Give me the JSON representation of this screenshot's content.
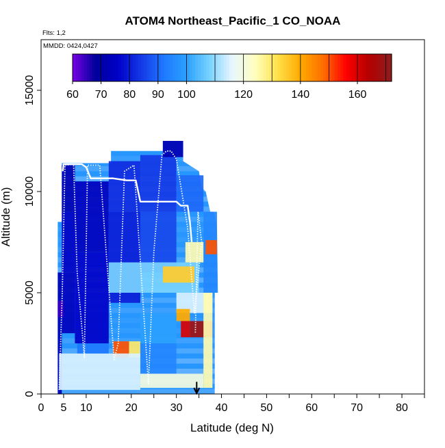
{
  "chart_data": {
    "type": "heatmap",
    "title": "ATOM4 Northeast_Pacific_1 CO_NOAA",
    "annotations": [
      "Flts: 1,2",
      "MMDD: 0424,0427"
    ],
    "xlabel": "Latitude (deg N)",
    "ylabel": "Altitude (m)",
    "xlim": [
      0,
      85
    ],
    "ylim": [
      0,
      17500
    ],
    "x_ticks": [
      "0",
      "5",
      "10",
      "20",
      "30",
      "40",
      "50",
      "60",
      "70",
      "80"
    ],
    "y_ticks": [
      "0",
      "5000",
      "10000",
      "15000"
    ],
    "colorbar": {
      "range": [
        60,
        172
      ],
      "ticks": [
        "60",
        "70",
        "80",
        "90",
        "100",
        "120",
        "140",
        "160"
      ],
      "colors": [
        "#7a00e6",
        "#00009a",
        "#0000c8",
        "#1438e6",
        "#1e78ff",
        "#2aa0ff",
        "#78d2ff",
        "#e8f6ff",
        "#ffffc0",
        "#ffe14a",
        "#ffaa00",
        "#ff6e00",
        "#ff0000",
        "#b40000",
        "#8c1e1e"
      ]
    },
    "marker": {
      "type": "arrow",
      "x": 34.5,
      "y": 0
    },
    "heatmap_cells": [
      {
        "x": [
          3.7,
          4.6
        ],
        "y": [
          0,
          6000
        ],
        "value": 73
      },
      {
        "x": [
          4.6,
          7.5
        ],
        "y": [
          9000,
          11300
        ],
        "value": 72
      },
      {
        "x": [
          4.6,
          7.5
        ],
        "y": [
          6000,
          9000
        ],
        "value": 75
      },
      {
        "x": [
          4.6,
          7.5
        ],
        "y": [
          3000,
          6000
        ],
        "value": 74
      },
      {
        "x": [
          3.7,
          5.0
        ],
        "y": [
          3800,
          4600
        ],
        "value": 64
      },
      {
        "x": [
          7.5,
          15
        ],
        "y": [
          7000,
          10500
        ],
        "value": 74
      },
      {
        "x": [
          7.5,
          15
        ],
        "y": [
          2500,
          7000
        ],
        "value": 76
      },
      {
        "x": [
          15,
          22
        ],
        "y": [
          9000,
          11500
        ],
        "value": 82
      },
      {
        "x": [
          15,
          22
        ],
        "y": [
          4500,
          9000
        ],
        "value": 80
      },
      {
        "x": [
          22,
          30
        ],
        "y": [
          9000,
          11800
        ],
        "value": 84
      },
      {
        "x": [
          22,
          30
        ],
        "y": [
          6000,
          9000
        ],
        "value": 86
      },
      {
        "x": [
          30,
          36
        ],
        "y": [
          9000,
          10800
        ],
        "value": 90
      },
      {
        "x": [
          36,
          39
        ],
        "y": [
          5000,
          9000
        ],
        "value": 95
      },
      {
        "x": [
          27,
          31.5
        ],
        "y": [
          11700,
          12500
        ],
        "value": 72
      },
      {
        "x": [
          15,
          35
        ],
        "y": [
          5000,
          6500
        ],
        "value": 108
      },
      {
        "x": [
          27,
          34
        ],
        "y": [
          5500,
          6300
        ],
        "value": 135
      },
      {
        "x": [
          32,
          36
        ],
        "y": [
          6500,
          7500
        ],
        "value": 125
      },
      {
        "x": [
          36.5,
          39
        ],
        "y": [
          6900,
          7600
        ],
        "value": 150
      },
      {
        "x": [
          30,
          38
        ],
        "y": [
          4000,
          5000
        ],
        "value": 115
      },
      {
        "x": [
          30,
          33
        ],
        "y": [
          3600,
          4200
        ],
        "value": 140
      },
      {
        "x": [
          33,
          38
        ],
        "y": [
          2800,
          3600
        ],
        "value": 168
      },
      {
        "x": [
          31,
          33
        ],
        "y": [
          2800,
          3600
        ],
        "value": 160
      },
      {
        "x": [
          16,
          19.5
        ],
        "y": [
          1800,
          2600
        ],
        "value": 150
      },
      {
        "x": [
          19.5,
          22
        ],
        "y": [
          1800,
          2600
        ],
        "value": 130
      },
      {
        "x": [
          22,
          30
        ],
        "y": [
          1000,
          2500
        ],
        "value": 95
      },
      {
        "x": [
          4,
          22
        ],
        "y": [
          200,
          2000
        ],
        "value": 115
      },
      {
        "x": [
          22,
          36
        ],
        "y": [
          300,
          1000
        ],
        "value": 120
      },
      {
        "x": [
          36,
          38
        ],
        "y": [
          300,
          5000
        ],
        "value": 125
      },
      {
        "x": [
          22,
          30
        ],
        "y": [
          2500,
          4000
        ],
        "value": 100
      },
      {
        "x": [
          8,
          15
        ],
        "y": [
          2000,
          2500
        ],
        "value": 92
      }
    ],
    "flight_tracks": [
      {
        "name": "",
        "style": "solid",
        "x": [
          4.8,
          5,
          7,
          9,
          10,
          11,
          14,
          15,
          16,
          19,
          21,
          22,
          26,
          30,
          31,
          32.5,
          33,
          33.4
        ],
        "y": [
          11000,
          11350,
          11350,
          11350,
          11200,
          10650,
          10650,
          10650,
          10650,
          10550,
          10550,
          9500,
          9500,
          9500,
          9300,
          9300,
          8500,
          7500
        ]
      },
      {
        "name": "",
        "style": "dotted",
        "x": [
          4,
          4.7,
          5.3,
          7.2,
          8,
          9.6,
          10.3,
          13,
          16.2,
          17.1,
          18.5,
          20.6,
          23.8,
          25,
          26.8,
          27.8,
          28.8,
          30,
          32.5,
          34,
          35.6,
          34.8,
          34.2
        ],
        "y": [
          200,
          5000,
          11300,
          11350,
          6000,
          1800,
          11300,
          11300,
          1700,
          2500,
          11000,
          11300,
          500,
          7000,
          11800,
          12000,
          12000,
          11600,
          8200,
          4000,
          7500,
          9000,
          3000
        ]
      }
    ]
  }
}
